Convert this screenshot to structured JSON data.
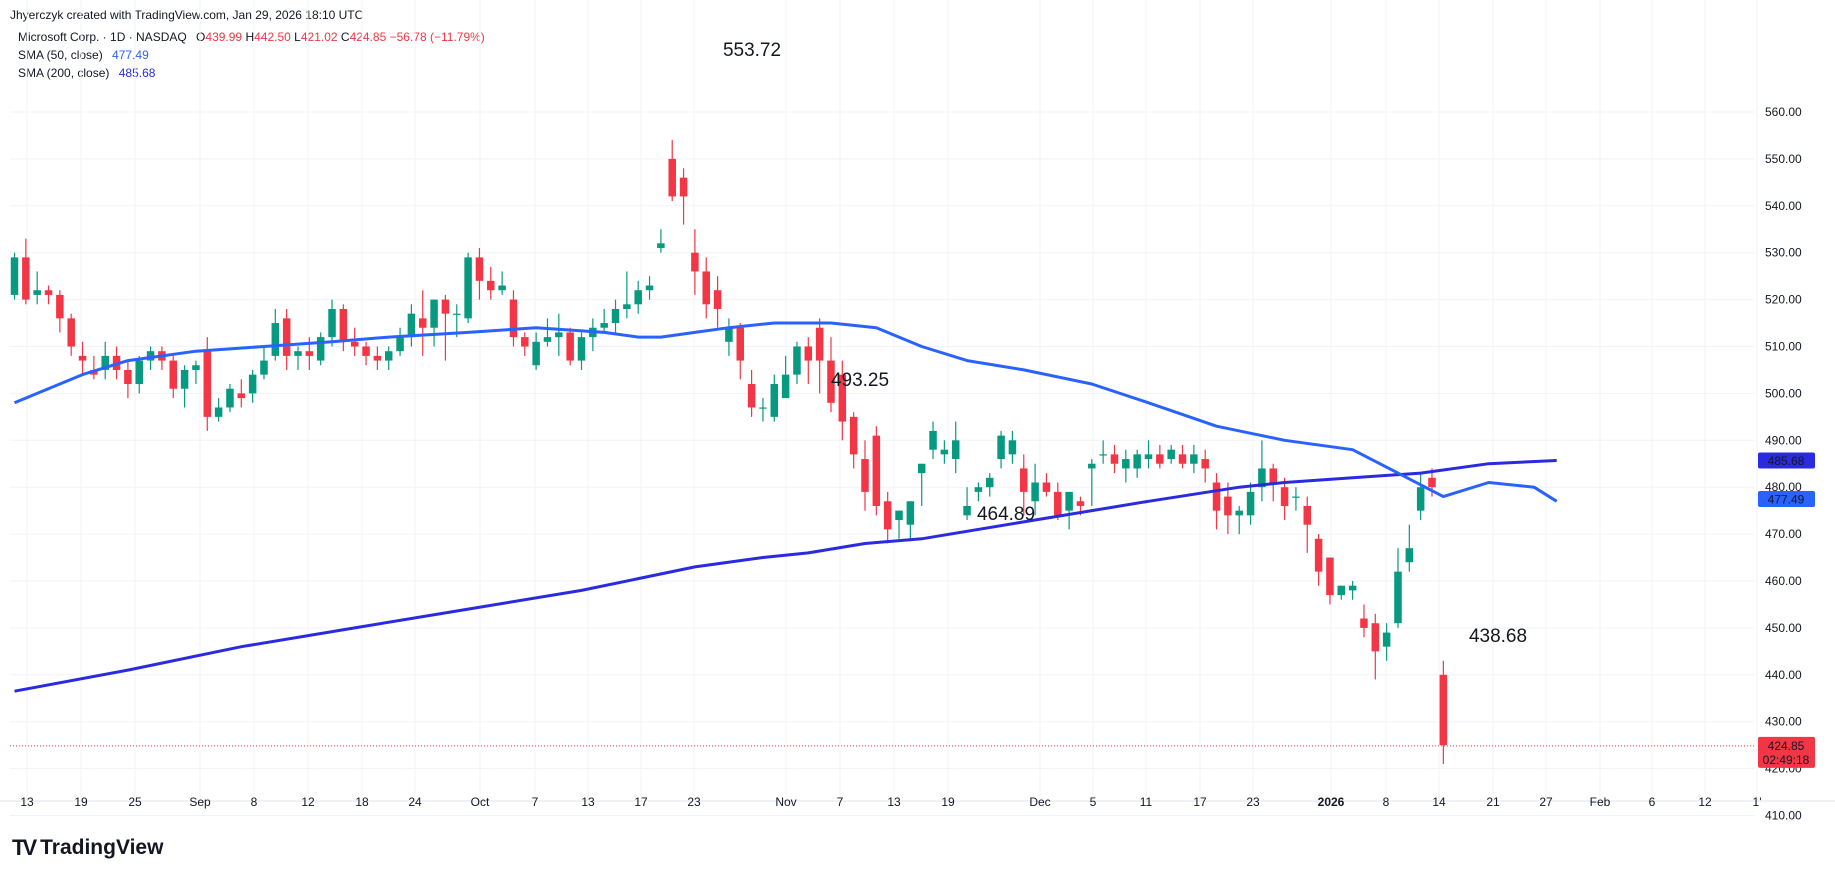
{
  "header": {
    "attribution": "Jhyerczyk created with TradingView.com, Jan 29, 2026 18:10 UTC"
  },
  "legend": {
    "symbol": "Microsoft Corp. · 1D · NASDAQ",
    "ohlc": {
      "o_label": "O",
      "o": "439.99",
      "h_label": "H",
      "h": "442.50",
      "l_label": "L",
      "l": "421.02",
      "c_label": "C",
      "c": "424.85",
      "change": "−56.78 (−11.79%)"
    },
    "sma50": {
      "label": "SMA (50, close)",
      "value": "477.49"
    },
    "sma200": {
      "label": "SMA (200, close)",
      "value": "485.68"
    }
  },
  "brand": {
    "name": "TradingView",
    "logo": "TV"
  },
  "colors": {
    "up": "#089981",
    "down": "#f23645",
    "sma50": "#2962ff",
    "sma200": "#2a2be0",
    "grid": "#f0f3fa",
    "text": "#131722"
  },
  "chart_data": {
    "type": "candlestick",
    "title": "Microsoft Corp. · 1D · NASDAQ",
    "ylim": [
      405,
      565
    ],
    "y_ticks": [
      "560.00",
      "550.00",
      "540.00",
      "530.00",
      "520.00",
      "510.00",
      "500.00",
      "490.00",
      "480.00",
      "470.00",
      "460.00",
      "450.00",
      "440.00",
      "430.00",
      "420.00",
      "410.00"
    ],
    "x_ticks": [
      "13",
      "19",
      "25",
      "Sep",
      "8",
      "12",
      "18",
      "24",
      "Oct",
      "7",
      "13",
      "17",
      "23",
      "Nov",
      "7",
      "13",
      "19",
      "Dec",
      "5",
      "11",
      "17",
      "23",
      "2026",
      "8",
      "14",
      "21",
      "27",
      "Feb",
      "6",
      "12",
      "1'"
    ],
    "grid": true,
    "price_labels": {
      "sma200": "485.68",
      "sma50": "477.49",
      "last_price": "424.85",
      "countdown": "02:49:18"
    },
    "annotations": [
      "553.72",
      "493.25",
      "464.89",
      "438.68"
    ],
    "series": [
      {
        "type": "candles",
        "ohlc": [
          [
            521,
            530,
            520,
            529
          ],
          [
            529,
            533,
            519,
            520
          ],
          [
            521,
            526,
            519,
            522
          ],
          [
            522,
            523,
            519,
            521
          ],
          [
            521,
            522,
            513,
            516
          ],
          [
            516,
            517,
            508,
            510
          ],
          [
            508,
            511,
            504,
            507
          ],
          [
            505,
            508,
            503,
            504
          ],
          [
            505,
            511,
            503,
            508
          ],
          [
            508,
            510,
            503,
            505
          ],
          [
            505,
            507,
            499,
            502
          ],
          [
            502,
            508,
            500,
            507
          ],
          [
            507,
            510,
            505,
            509
          ],
          [
            509,
            510,
            505,
            507
          ],
          [
            507,
            508,
            499,
            501
          ],
          [
            501,
            506,
            497,
            505
          ],
          [
            505,
            507,
            502,
            506
          ],
          [
            509,
            512,
            492,
            495
          ],
          [
            495,
            499,
            494,
            497
          ],
          [
            497,
            502,
            496,
            501
          ],
          [
            500,
            503,
            497,
            499
          ],
          [
            500,
            505,
            498,
            504
          ],
          [
            504,
            510,
            503,
            507
          ],
          [
            508,
            518,
            507,
            515
          ],
          [
            516,
            518,
            505,
            508
          ],
          [
            508,
            510,
            505,
            509
          ],
          [
            509,
            512,
            505,
            508
          ],
          [
            507,
            513,
            506,
            512
          ],
          [
            512,
            520,
            510,
            518
          ],
          [
            518,
            519,
            509,
            511
          ],
          [
            511,
            514,
            508,
            510
          ],
          [
            510,
            511,
            506,
            508
          ],
          [
            508,
            510,
            505,
            507
          ],
          [
            507,
            510,
            505,
            509
          ],
          [
            509,
            514,
            508,
            512
          ],
          [
            512,
            519,
            510,
            517
          ],
          [
            516,
            522,
            508,
            514
          ],
          [
            514,
            520,
            510,
            520
          ],
          [
            520,
            521,
            507,
            517
          ],
          [
            517,
            519,
            512,
            517
          ],
          [
            516,
            530,
            515,
            529
          ],
          [
            529,
            531,
            520,
            524
          ],
          [
            524,
            527,
            520,
            522
          ],
          [
            522,
            526,
            521,
            523
          ],
          [
            520,
            522,
            510,
            512
          ],
          [
            512,
            513,
            508,
            510
          ],
          [
            506,
            513,
            505,
            511
          ],
          [
            511,
            516,
            510,
            512
          ],
          [
            512,
            517,
            508,
            513
          ],
          [
            513,
            514,
            506,
            507
          ],
          [
            507,
            513,
            505,
            512
          ],
          [
            512,
            516,
            509,
            514
          ],
          [
            514,
            518,
            513,
            515
          ],
          [
            515,
            520,
            513,
            518
          ],
          [
            518,
            526,
            516,
            519
          ],
          [
            519,
            524,
            517,
            522
          ],
          [
            522,
            525,
            520,
            523
          ],
          [
            531,
            535,
            530,
            532
          ],
          [
            550,
            554,
            541,
            542
          ],
          [
            546,
            548,
            536,
            542
          ],
          [
            530,
            535,
            521,
            526
          ],
          [
            526,
            529,
            516,
            519
          ],
          [
            522,
            525,
            514,
            518
          ],
          [
            511,
            516,
            508,
            514
          ],
          [
            514,
            515,
            503,
            507
          ],
          [
            502,
            505,
            495,
            497
          ],
          [
            497,
            499,
            494,
            497
          ],
          [
            495,
            504,
            494,
            502
          ],
          [
            499,
            508,
            499,
            504
          ],
          [
            504,
            511,
            502,
            510
          ],
          [
            510,
            512,
            502,
            507
          ],
          [
            514,
            516,
            500,
            507
          ],
          [
            507,
            512,
            496,
            498
          ],
          [
            504,
            507,
            490,
            494
          ],
          [
            495,
            496,
            484,
            487
          ],
          [
            486,
            490,
            475,
            479
          ],
          [
            491,
            493,
            474,
            476
          ],
          [
            477,
            479,
            468,
            471
          ],
          [
            473,
            475,
            469,
            475
          ],
          [
            472,
            477,
            469,
            477
          ],
          [
            483,
            485,
            476,
            485
          ],
          [
            488,
            494,
            486,
            492
          ],
          [
            487,
            490,
            485,
            488
          ],
          [
            486,
            494,
            483,
            490
          ],
          [
            474,
            480,
            473,
            476
          ],
          [
            479,
            481,
            477,
            480
          ],
          [
            480,
            483,
            478,
            482
          ],
          [
            486,
            492,
            484,
            491
          ],
          [
            487,
            492,
            485,
            490
          ],
          [
            484,
            487,
            474,
            479
          ],
          [
            477,
            485,
            474,
            481
          ],
          [
            481,
            483,
            478,
            479
          ],
          [
            479,
            481,
            473,
            474
          ],
          [
            475,
            479,
            471,
            479
          ],
          [
            477,
            478,
            474,
            476
          ],
          [
            484,
            486,
            476,
            485
          ],
          [
            487,
            490,
            485,
            487
          ],
          [
            487,
            489,
            483,
            485
          ],
          [
            484,
            488,
            481,
            486
          ],
          [
            484,
            488,
            482,
            487
          ],
          [
            486,
            490,
            484,
            487
          ],
          [
            487,
            489,
            484,
            485
          ],
          [
            486,
            489,
            485,
            488
          ],
          [
            487,
            489,
            484,
            485
          ],
          [
            485,
            489,
            483,
            487
          ],
          [
            486,
            488,
            481,
            484
          ],
          [
            481,
            483,
            471,
            475
          ],
          [
            478,
            481,
            470,
            474
          ],
          [
            474,
            476,
            470,
            475
          ],
          [
            474,
            481,
            472,
            479
          ],
          [
            480,
            490,
            477,
            484
          ],
          [
            484,
            485,
            477,
            481
          ],
          [
            480,
            482,
            473,
            476
          ],
          [
            478,
            480,
            475,
            478
          ],
          [
            476,
            478,
            466,
            472
          ],
          [
            469,
            470,
            459,
            462
          ],
          [
            465,
            465,
            455,
            457
          ],
          [
            457,
            459,
            456,
            459
          ],
          [
            458,
            460,
            456,
            459
          ],
          [
            452,
            455,
            448,
            450
          ],
          [
            451,
            453,
            439,
            445
          ],
          [
            446,
            451,
            443,
            449
          ],
          [
            451,
            467,
            450,
            462
          ],
          [
            464,
            472,
            462,
            467
          ],
          [
            475,
            483,
            473,
            480
          ],
          [
            482,
            484,
            478,
            480
          ],
          [
            440,
            443,
            421,
            425
          ]
        ]
      },
      {
        "name": "SMA (50, close)",
        "x": [
          0,
          6,
          10,
          16,
          22,
          28,
          33,
          40,
          46,
          52,
          55,
          57,
          60,
          63,
          67,
          72,
          76,
          80,
          84,
          89,
          95,
          100,
          106,
          112,
          118,
          122,
          126,
          130,
          134,
          136
        ],
        "values": [
          498,
          504,
          507,
          509,
          510,
          511,
          512,
          513,
          514,
          513,
          512,
          512,
          513,
          514,
          515,
          515,
          514,
          510,
          507,
          505,
          502,
          498,
          493,
          490,
          488,
          483,
          478,
          481,
          480,
          477
        ]
      },
      {
        "name": "SMA (200, close)",
        "x": [
          0,
          10,
          20,
          30,
          40,
          50,
          60,
          66,
          70,
          75,
          80,
          90,
          100,
          108,
          112,
          118,
          124,
          130,
          136
        ],
        "values": [
          436.5,
          441,
          446,
          450,
          454,
          458,
          463,
          465,
          466,
          468,
          469,
          473,
          477,
          480,
          481,
          482,
          483,
          485,
          485.7
        ]
      }
    ]
  }
}
